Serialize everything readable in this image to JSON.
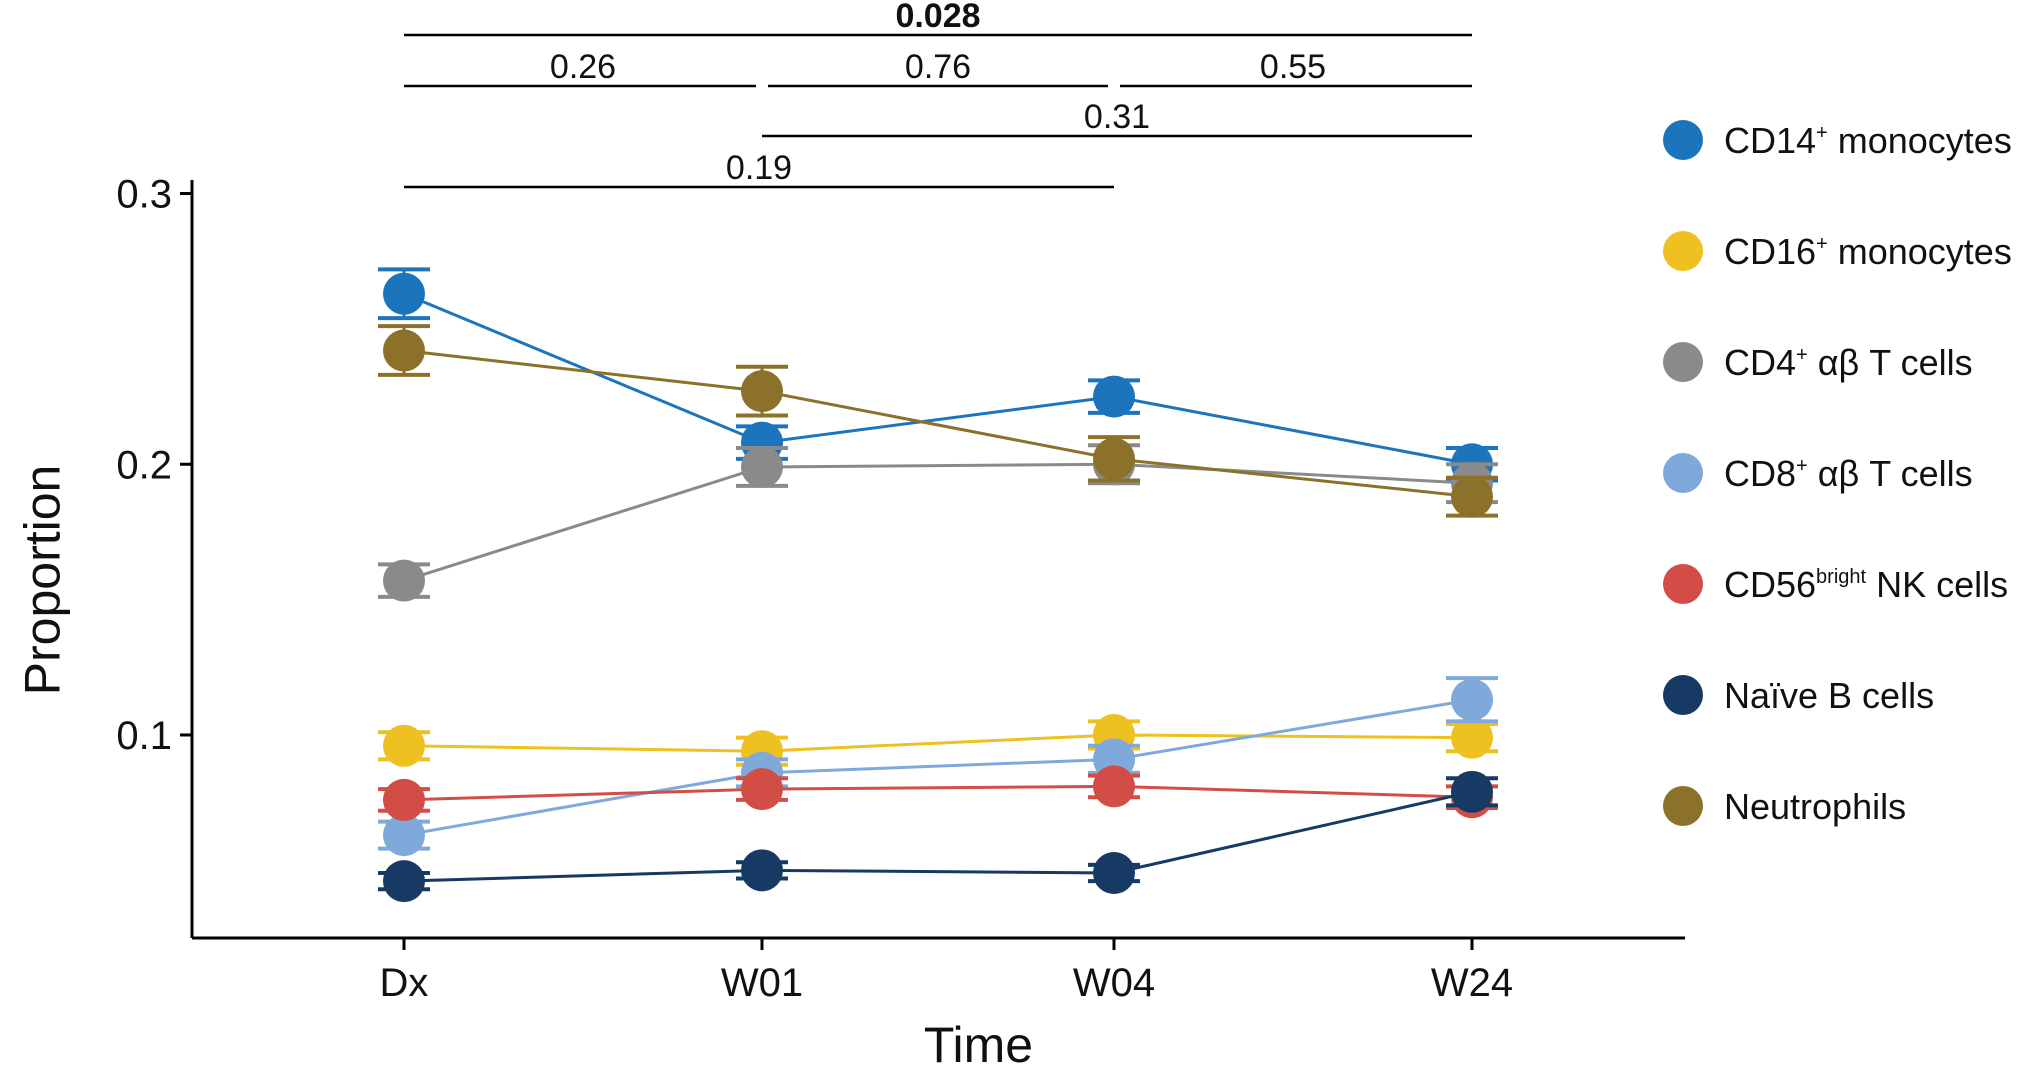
{
  "chart_data": {
    "type": "line",
    "xlabel": "Time",
    "ylabel": "Proportion",
    "categories": [
      "Dx",
      "W01",
      "W04",
      "W24"
    ],
    "ylim": [
      0.025,
      0.305
    ],
    "yticks": [
      {
        "value": 0.1,
        "label": "0.1"
      },
      {
        "value": 0.2,
        "label": "0.2"
      },
      {
        "value": 0.3,
        "label": "0.3"
      }
    ],
    "series": [
      {
        "key": "cd14",
        "name": "CD14⁺ monocytes",
        "label_parts": [
          "CD14",
          "+",
          " monocytes"
        ],
        "color": "#1C75BC",
        "values": [
          0.263,
          0.208,
          0.225,
          0.2
        ],
        "errors": [
          0.009,
          0.006,
          0.006,
          0.006
        ]
      },
      {
        "key": "cd16",
        "name": "CD16⁺ monocytes",
        "label_parts": [
          "CD16",
          "+",
          " monocytes"
        ],
        "color": "#EFC120",
        "values": [
          0.096,
          0.094,
          0.1,
          0.099
        ],
        "errors": [
          0.005,
          0.005,
          0.005,
          0.005
        ]
      },
      {
        "key": "cd4",
        "name": "CD4⁺ αβ T cells",
        "label_parts": [
          "CD4",
          "+",
          " αβ T cells"
        ],
        "color": "#8A8A8A",
        "values": [
          0.157,
          0.199,
          0.2,
          0.193
        ],
        "errors": [
          0.006,
          0.007,
          0.007,
          0.007
        ]
      },
      {
        "key": "cd8",
        "name": "CD8⁺ αβ T cells",
        "label_parts": [
          "CD8",
          "+",
          " αβ T cells"
        ],
        "color": "#7FA9DA",
        "values": [
          0.063,
          0.086,
          0.091,
          0.113
        ],
        "errors": [
          0.005,
          0.005,
          0.005,
          0.008
        ]
      },
      {
        "key": "nk",
        "name": "CD56bright NK cells",
        "label_parts": [
          "CD56",
          "bright",
          " NK cells"
        ],
        "color": "#D24D45",
        "values": [
          0.076,
          0.08,
          0.081,
          0.077
        ],
        "errors": [
          0.004,
          0.004,
          0.004,
          0.004
        ]
      },
      {
        "key": "naiveb",
        "name": "Naïve B cells",
        "label_parts": [
          "Naïve B cells",
          "",
          ""
        ],
        "color": "#163A64",
        "values": [
          0.046,
          0.05,
          0.049,
          0.079
        ],
        "errors": [
          0.003,
          0.003,
          0.003,
          0.005
        ]
      },
      {
        "key": "neut",
        "name": "Neutrophils",
        "label_parts": [
          "Neutrophils",
          "",
          ""
        ],
        "color": "#8C712A",
        "values": [
          0.242,
          0.227,
          0.202,
          0.188
        ],
        "errors": [
          0.009,
          0.009,
          0.008,
          0.007
        ]
      }
    ],
    "significance": [
      {
        "from": "Dx",
        "to": "W24",
        "label": "0.028",
        "bold": true,
        "row": 0
      },
      {
        "from": "Dx",
        "to": "W01",
        "label": "0.26",
        "bold": false,
        "row": 1
      },
      {
        "from": "W01",
        "to": "W04",
        "label": "0.76",
        "bold": false,
        "row": 1
      },
      {
        "from": "W04",
        "to": "W24",
        "label": "0.55",
        "bold": false,
        "row": 1
      },
      {
        "from": "W01",
        "to": "W24",
        "label": "0.31",
        "bold": false,
        "row": 2
      },
      {
        "from": "Dx",
        "to": "W04",
        "label": "0.19",
        "bold": false,
        "row": 3
      }
    ]
  }
}
